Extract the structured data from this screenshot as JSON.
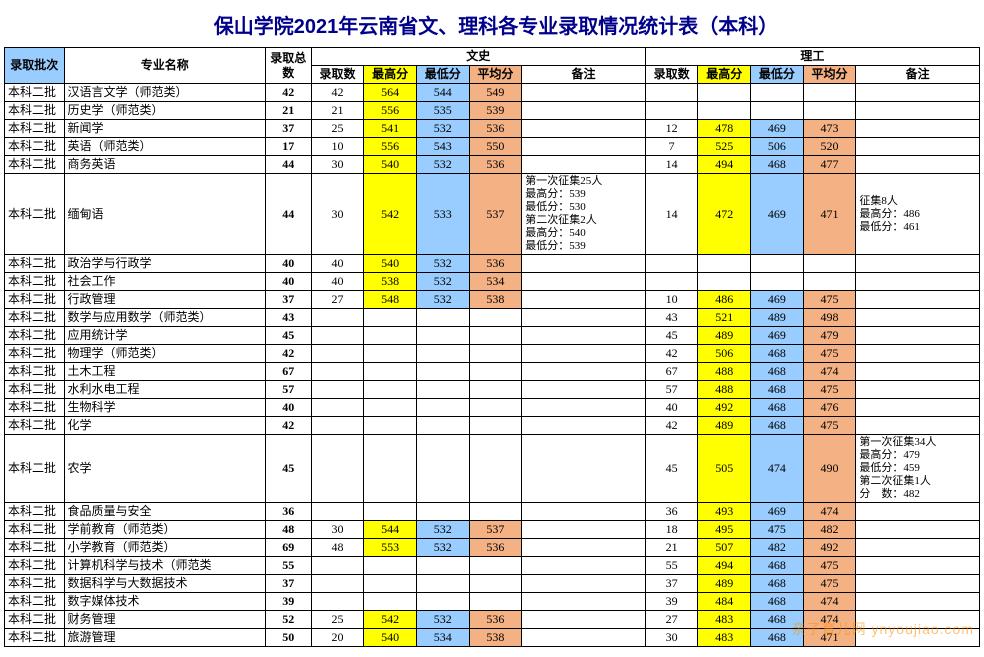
{
  "title": "保山学院2021年云南省文、理科各专业录取情况统计表（本科）",
  "colors": {
    "yellow": "#ffff00",
    "blue": "#99ccff",
    "orange": "#f4b183",
    "border": "#000000",
    "title": "#00008b"
  },
  "header": {
    "batch": "录取批次",
    "major": "专业名称",
    "total": "录取总数",
    "wen": "文史",
    "li": "理工",
    "cols": {
      "count": "录取数",
      "max": "最高分",
      "min": "最低分",
      "avg": "平均分",
      "note": "备注"
    }
  },
  "rows": [
    {
      "batch": "本科二批",
      "major": "汉语言文学（师范类）",
      "total": 42,
      "wen": {
        "count": 42,
        "max": 564,
        "min": 544,
        "avg": 549,
        "note": ""
      },
      "li": {
        "count": "",
        "max": "",
        "min": "",
        "avg": "",
        "note": ""
      }
    },
    {
      "batch": "本科二批",
      "major": "历史学（师范类）",
      "total": 21,
      "wen": {
        "count": 21,
        "max": 556,
        "min": 535,
        "avg": 539,
        "note": ""
      },
      "li": {
        "count": "",
        "max": "",
        "min": "",
        "avg": "",
        "note": ""
      }
    },
    {
      "batch": "本科二批",
      "major": "新闻学",
      "total": 37,
      "wen": {
        "count": 25,
        "max": 541,
        "min": 532,
        "avg": 536,
        "note": ""
      },
      "li": {
        "count": 12,
        "max": 478,
        "min": 469,
        "avg": 473,
        "note": ""
      }
    },
    {
      "batch": "本科二批",
      "major": "英语（师范类）",
      "total": 17,
      "wen": {
        "count": 10,
        "max": 556,
        "min": 543,
        "avg": 550,
        "note": ""
      },
      "li": {
        "count": 7,
        "max": 525,
        "min": 506,
        "avg": 520,
        "note": ""
      }
    },
    {
      "batch": "本科二批",
      "major": "商务英语",
      "total": 44,
      "wen": {
        "count": 30,
        "max": 540,
        "min": 532,
        "avg": 536,
        "note": ""
      },
      "li": {
        "count": 14,
        "max": 494,
        "min": 468,
        "avg": 477,
        "note": ""
      }
    },
    {
      "batch": "本科二批",
      "major": "缅甸语",
      "total": 44,
      "wen": {
        "count": 30,
        "max": 542,
        "min": 533,
        "avg": 537,
        "note": "第一次征集25人\n最高分：539\n最低分：530\n第二次征集2人\n最高分：540\n最低分：539"
      },
      "li": {
        "count": 14,
        "max": 472,
        "min": 469,
        "avg": 471,
        "note": "征集8人\n最高分：486\n最低分：461"
      }
    },
    {
      "batch": "本科二批",
      "major": "政治学与行政学",
      "total": 40,
      "wen": {
        "count": 40,
        "max": 540,
        "min": 532,
        "avg": 536,
        "note": ""
      },
      "li": {
        "count": "",
        "max": "",
        "min": "",
        "avg": "",
        "note": ""
      }
    },
    {
      "batch": "本科二批",
      "major": "社会工作",
      "total": 40,
      "wen": {
        "count": 40,
        "max": 538,
        "min": 532,
        "avg": 534,
        "note": ""
      },
      "li": {
        "count": "",
        "max": "",
        "min": "",
        "avg": "",
        "note": ""
      }
    },
    {
      "batch": "本科二批",
      "major": "行政管理",
      "total": 37,
      "wen": {
        "count": 27,
        "max": 548,
        "min": 532,
        "avg": 538,
        "note": ""
      },
      "li": {
        "count": 10,
        "max": 486,
        "min": 469,
        "avg": 475,
        "note": ""
      }
    },
    {
      "batch": "本科二批",
      "major": "数学与应用数学（师范类）",
      "total": 43,
      "wen": {
        "count": "",
        "max": "",
        "min": "",
        "avg": "",
        "note": ""
      },
      "li": {
        "count": 43,
        "max": 521,
        "min": 489,
        "avg": 498,
        "note": ""
      }
    },
    {
      "batch": "本科二批",
      "major": "应用统计学",
      "total": 45,
      "wen": {
        "count": "",
        "max": "",
        "min": "",
        "avg": "",
        "note": ""
      },
      "li": {
        "count": 45,
        "max": 489,
        "min": 469,
        "avg": 479,
        "note": ""
      }
    },
    {
      "batch": "本科二批",
      "major": "物理学（师范类）",
      "total": 42,
      "wen": {
        "count": "",
        "max": "",
        "min": "",
        "avg": "",
        "note": ""
      },
      "li": {
        "count": 42,
        "max": 506,
        "min": 468,
        "avg": 475,
        "note": ""
      }
    },
    {
      "batch": "本科二批",
      "major": "土木工程",
      "total": 67,
      "wen": {
        "count": "",
        "max": "",
        "min": "",
        "avg": "",
        "note": ""
      },
      "li": {
        "count": 67,
        "max": 488,
        "min": 468,
        "avg": 474,
        "note": ""
      }
    },
    {
      "batch": "本科二批",
      "major": "水利水电工程",
      "total": 57,
      "wen": {
        "count": "",
        "max": "",
        "min": "",
        "avg": "",
        "note": ""
      },
      "li": {
        "count": 57,
        "max": 488,
        "min": 468,
        "avg": 475,
        "note": ""
      }
    },
    {
      "batch": "本科二批",
      "major": "生物科学",
      "total": 40,
      "wen": {
        "count": "",
        "max": "",
        "min": "",
        "avg": "",
        "note": ""
      },
      "li": {
        "count": 40,
        "max": 492,
        "min": 468,
        "avg": 476,
        "note": ""
      }
    },
    {
      "batch": "本科二批",
      "major": "化学",
      "total": 42,
      "wen": {
        "count": "",
        "max": "",
        "min": "",
        "avg": "",
        "note": ""
      },
      "li": {
        "count": 42,
        "max": 489,
        "min": 468,
        "avg": 475,
        "note": ""
      }
    },
    {
      "batch": "本科二批",
      "major": "农学",
      "total": 45,
      "wen": {
        "count": "",
        "max": "",
        "min": "",
        "avg": "",
        "note": ""
      },
      "li": {
        "count": 45,
        "max": 505,
        "min": 474,
        "avg": 490,
        "note": "第一次征集34人\n最高分：479\n最低分：459\n第二次征集1人\n分　数：482"
      }
    },
    {
      "batch": "本科二批",
      "major": "食品质量与安全",
      "total": 36,
      "wen": {
        "count": "",
        "max": "",
        "min": "",
        "avg": "",
        "note": ""
      },
      "li": {
        "count": 36,
        "max": 493,
        "min": 469,
        "avg": 474,
        "note": ""
      }
    },
    {
      "batch": "本科二批",
      "major": "学前教育（师范类）",
      "total": 48,
      "wen": {
        "count": 30,
        "max": 544,
        "min": 532,
        "avg": 537,
        "note": ""
      },
      "li": {
        "count": 18,
        "max": 495,
        "min": 475,
        "avg": 482,
        "note": ""
      }
    },
    {
      "batch": "本科二批",
      "major": "小学教育（师范类）",
      "total": 69,
      "wen": {
        "count": 48,
        "max": 553,
        "min": 532,
        "avg": 536,
        "note": ""
      },
      "li": {
        "count": 21,
        "max": 507,
        "min": 482,
        "avg": 492,
        "note": ""
      }
    },
    {
      "batch": "本科二批",
      "major": "计算机科学与技术（师范类",
      "total": 55,
      "wen": {
        "count": "",
        "max": "",
        "min": "",
        "avg": "",
        "note": ""
      },
      "li": {
        "count": 55,
        "max": 494,
        "min": 468,
        "avg": 475,
        "note": ""
      }
    },
    {
      "batch": "本科二批",
      "major": "数据科学与大数据技术",
      "total": 37,
      "wen": {
        "count": "",
        "max": "",
        "min": "",
        "avg": "",
        "note": ""
      },
      "li": {
        "count": 37,
        "max": 489,
        "min": 468,
        "avg": 475,
        "note": ""
      }
    },
    {
      "batch": "本科二批",
      "major": "数字媒体技术",
      "total": 39,
      "wen": {
        "count": "",
        "max": "",
        "min": "",
        "avg": "",
        "note": ""
      },
      "li": {
        "count": 39,
        "max": 484,
        "min": 468,
        "avg": 474,
        "note": ""
      }
    },
    {
      "batch": "本科二批",
      "major": "财务管理",
      "total": 52,
      "wen": {
        "count": 25,
        "max": 542,
        "min": 532,
        "avg": 536,
        "note": ""
      },
      "li": {
        "count": 27,
        "max": 483,
        "min": 468,
        "avg": 474,
        "note": ""
      }
    },
    {
      "batch": "本科二批",
      "major": "旅游管理",
      "total": 50,
      "wen": {
        "count": 20,
        "max": 540,
        "min": 534,
        "avg": 538,
        "note": ""
      },
      "li": {
        "count": 30,
        "max": 483,
        "min": 468,
        "avg": 471,
        "note": ""
      }
    }
  ],
  "watermark": "亲子育儿网\nynyoujiao.com"
}
